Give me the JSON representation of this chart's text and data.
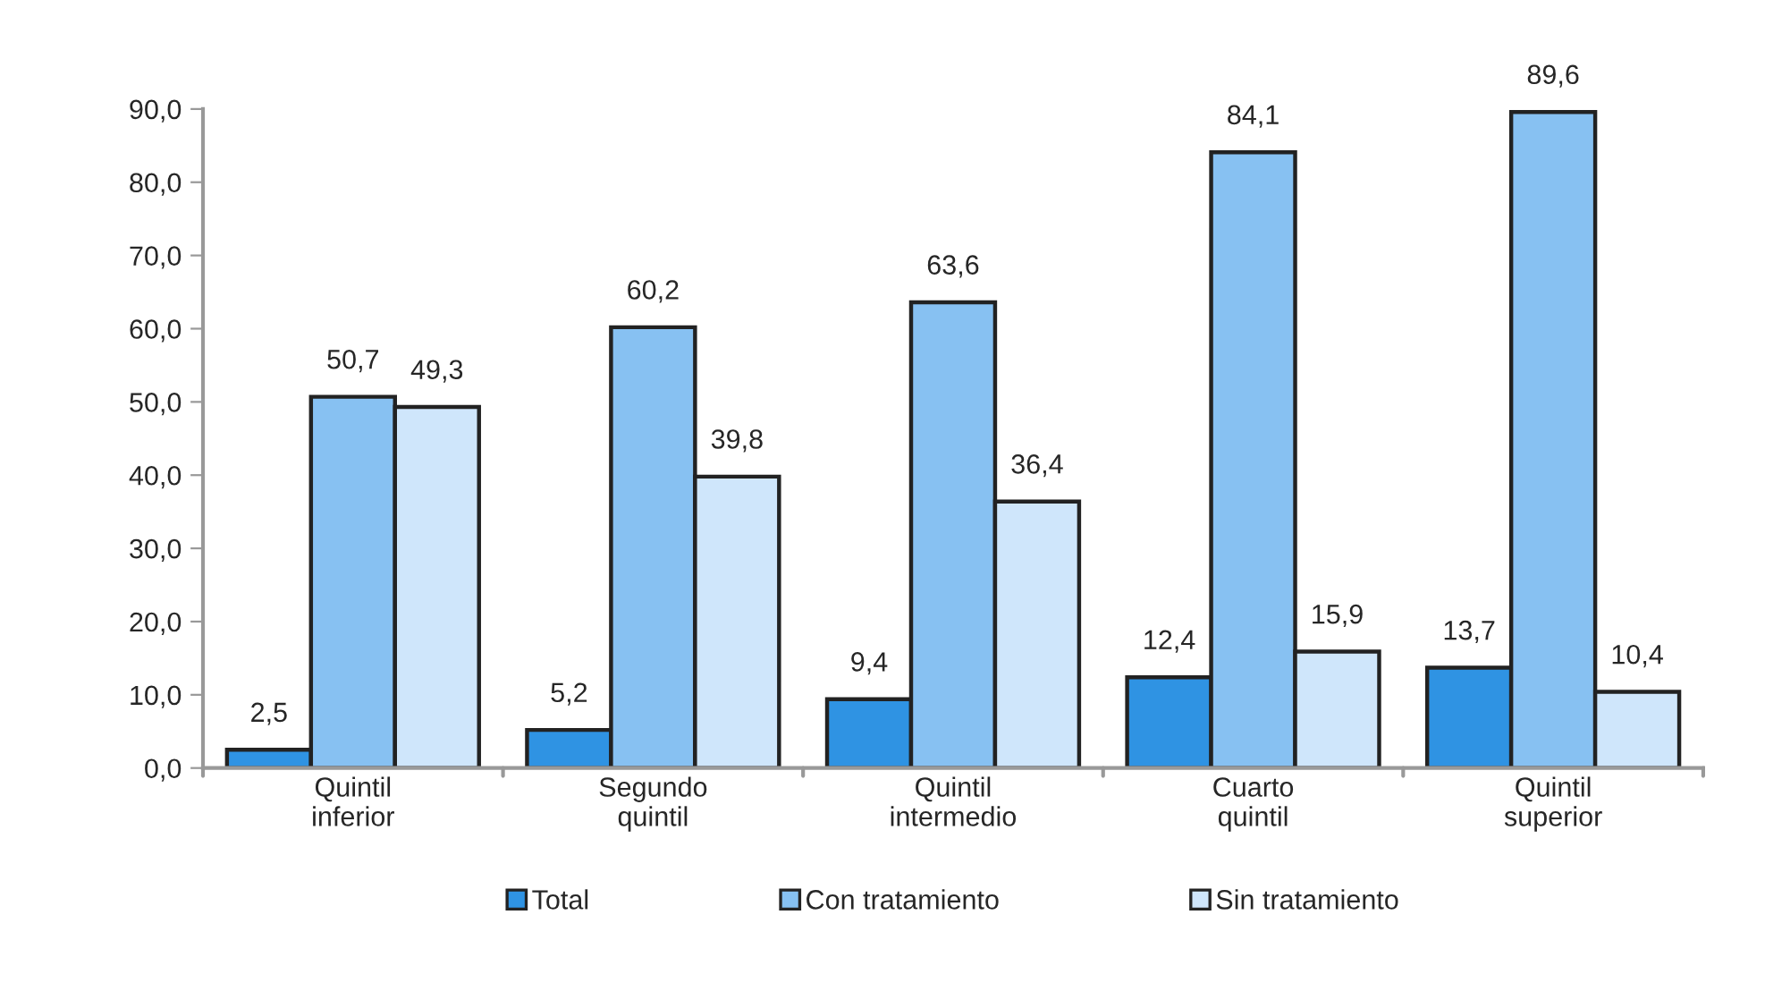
{
  "chart_data": {
    "type": "bar",
    "categories": [
      "Quintil\ninferior",
      "Segundo\nquintil",
      "Quintil\nintermedio",
      "Cuarto\nquintil",
      "Quintil\nsuperior"
    ],
    "series": [
      {
        "name": "Total",
        "color": "#2f93e3",
        "values": [
          2.5,
          5.2,
          9.4,
          12.4,
          13.7
        ],
        "value_labels": [
          "2,5",
          "5,2",
          "9,4",
          "12,4",
          "13,7"
        ]
      },
      {
        "name": "Con tratamiento",
        "color": "#87c1f2",
        "values": [
          50.7,
          60.2,
          63.6,
          84.1,
          89.6
        ],
        "value_labels": [
          "50,7",
          "60,2",
          "63,6",
          "84,1",
          "89,6"
        ]
      },
      {
        "name": "Sin tratamiento",
        "color": "#cfe6fb",
        "values": [
          49.3,
          39.8,
          36.4,
          15.9,
          10.4
        ],
        "value_labels": [
          "49,3",
          "39,8",
          "36,4",
          "15,9",
          "10,4"
        ]
      }
    ],
    "ylim": [
      0,
      90
    ],
    "yticks": [
      {
        "value": 0,
        "label": "0,0"
      },
      {
        "value": 10,
        "label": "10,0"
      },
      {
        "value": 20,
        "label": "20,0"
      },
      {
        "value": 30,
        "label": "30,0"
      },
      {
        "value": 40,
        "label": "40,0"
      },
      {
        "value": 50,
        "label": "50,0"
      },
      {
        "value": 60,
        "label": "60,0"
      },
      {
        "value": 70,
        "label": "70,0"
      },
      {
        "value": 80,
        "label": "80,0"
      },
      {
        "value": 90,
        "label": "90,0"
      }
    ],
    "grid": false,
    "legend": "bottom"
  }
}
